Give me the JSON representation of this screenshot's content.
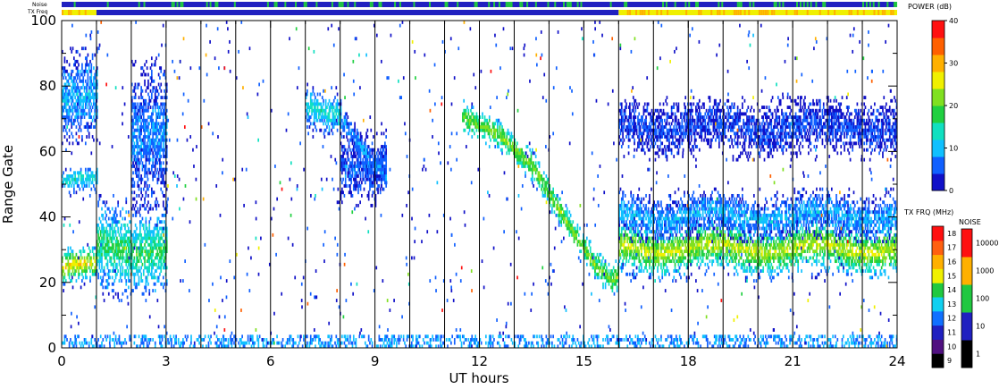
{
  "chart_data": {
    "type": "heatmap",
    "title": "",
    "xlabel": "UT hours",
    "ylabel": "Range Gate",
    "xlim": [
      0,
      24
    ],
    "ylim": [
      0,
      100
    ],
    "x_ticks": [
      "0",
      "3",
      "6",
      "9",
      "12",
      "15",
      "18",
      "21",
      "24"
    ],
    "y_ticks": [
      "0",
      "20",
      "40",
      "60",
      "80",
      "100"
    ],
    "top_strip_labels": {
      "noise": "Noise",
      "txfreq": "TX Freq"
    },
    "power_scale": {
      "label": "POWER (dB)",
      "range": [
        0,
        40
      ],
      "ticks": [
        "0",
        "10",
        "20",
        "30",
        "40"
      ],
      "colors": [
        "#1010c8",
        "#1060ff",
        "#10c0ff",
        "#10e0c0",
        "#20d040",
        "#80e020",
        "#f0f000",
        "#ffb000",
        "#ff6000",
        "#ff1010"
      ]
    },
    "txfreq_scale": {
      "label": "TX FRQ (MHz)",
      "ticks": [
        "9",
        "10",
        "11",
        "12",
        "13",
        "14",
        "15",
        "16",
        "17",
        "18"
      ],
      "colors": [
        "#000000",
        "#501080",
        "#2020c0",
        "#1070ff",
        "#10d0f0",
        "#20c840",
        "#f0f000",
        "#ffb000",
        "#ff6010",
        "#ff1010"
      ]
    },
    "noise_scale": {
      "label": "NOISE",
      "ticks": [
        "1",
        "10",
        "100",
        "1000",
        "10000"
      ],
      "colors": [
        "#000000",
        "#2020c0",
        "#20c840",
        "#ffb000",
        "#ff1010"
      ]
    },
    "scan_boundaries_ut": [
      1,
      2,
      3,
      4,
      5,
      6,
      7,
      8,
      9,
      10,
      11,
      12,
      13,
      14,
      15,
      16,
      17,
      18,
      19,
      20,
      21,
      22,
      23
    ],
    "echo_bands": [
      {
        "name": "",
        "x_start": 0.0,
        "x_end": 1.0,
        "gate_center": 24,
        "gate_halfwidth": 4,
        "power_db": 28
      },
      {
        "name": "",
        "x_start": 0.0,
        "x_end": 1.0,
        "gate_center": 50,
        "gate_halfwidth": 3,
        "power_db": 14
      },
      {
        "name": "",
        "x_start": 0.0,
        "x_end": 1.0,
        "gate_center": 75,
        "gate_halfwidth": 10,
        "power_db": 10
      },
      {
        "name": "",
        "x_start": 1.0,
        "x_end": 3.0,
        "gate_center": 30,
        "gate_halfwidth": 10,
        "power_db": 18
      },
      {
        "name": "",
        "x_start": 2.0,
        "x_end": 3.0,
        "gate_center": 65,
        "gate_halfwidth": 15,
        "power_db": 8
      },
      {
        "name": "",
        "x_start": 7.0,
        "x_end": 8.0,
        "gate_center": 72,
        "gate_halfwidth": 5,
        "power_db": 14
      },
      {
        "name": "",
        "x_start": 8.0,
        "x_end": 9.3,
        "gate_center": 55,
        "gate_halfwidth": 7,
        "power_db": 6
      },
      {
        "name": "",
        "x_start": 16.0,
        "x_end": 24.0,
        "gate_center": 30,
        "gate_halfwidth": 6,
        "power_db": 25
      },
      {
        "name": "",
        "x_start": 16.0,
        "x_end": 24.0,
        "gate_center": 40,
        "gate_halfwidth": 5,
        "power_db": 10
      },
      {
        "name": "",
        "x_start": 16.0,
        "x_end": 24.0,
        "gate_center": 67,
        "gate_halfwidth": 6,
        "power_db": 5
      }
    ],
    "echo_traces": [
      {
        "name": "",
        "points": [
          [
            11.5,
            70
          ],
          [
            12.5,
            65
          ],
          [
            13.5,
            55
          ],
          [
            14.5,
            38
          ],
          [
            15.3,
            25
          ],
          [
            15.8,
            20
          ],
          [
            16.0,
            22
          ]
        ],
        "power_db": 22,
        "halfwidth": 3
      },
      {
        "name": "",
        "points": [
          [
            8.0,
            70
          ],
          [
            8.5,
            62
          ],
          [
            9.0,
            55
          ],
          [
            9.3,
            52
          ]
        ],
        "power_db": 8,
        "halfwidth": 3
      }
    ],
    "ground_band": {
      "gate_max": 3,
      "power_db": 5
    },
    "txfreq_strip": [
      {
        "x_start": 0.0,
        "x_end": 1.0,
        "mhz": 15
      },
      {
        "x_start": 1.0,
        "x_end": 16.0,
        "mhz": 11
      },
      {
        "x_start": 16.0,
        "x_end": 24.0,
        "mhz": 15
      }
    ],
    "noise_strip_level": 10,
    "grid": false
  }
}
